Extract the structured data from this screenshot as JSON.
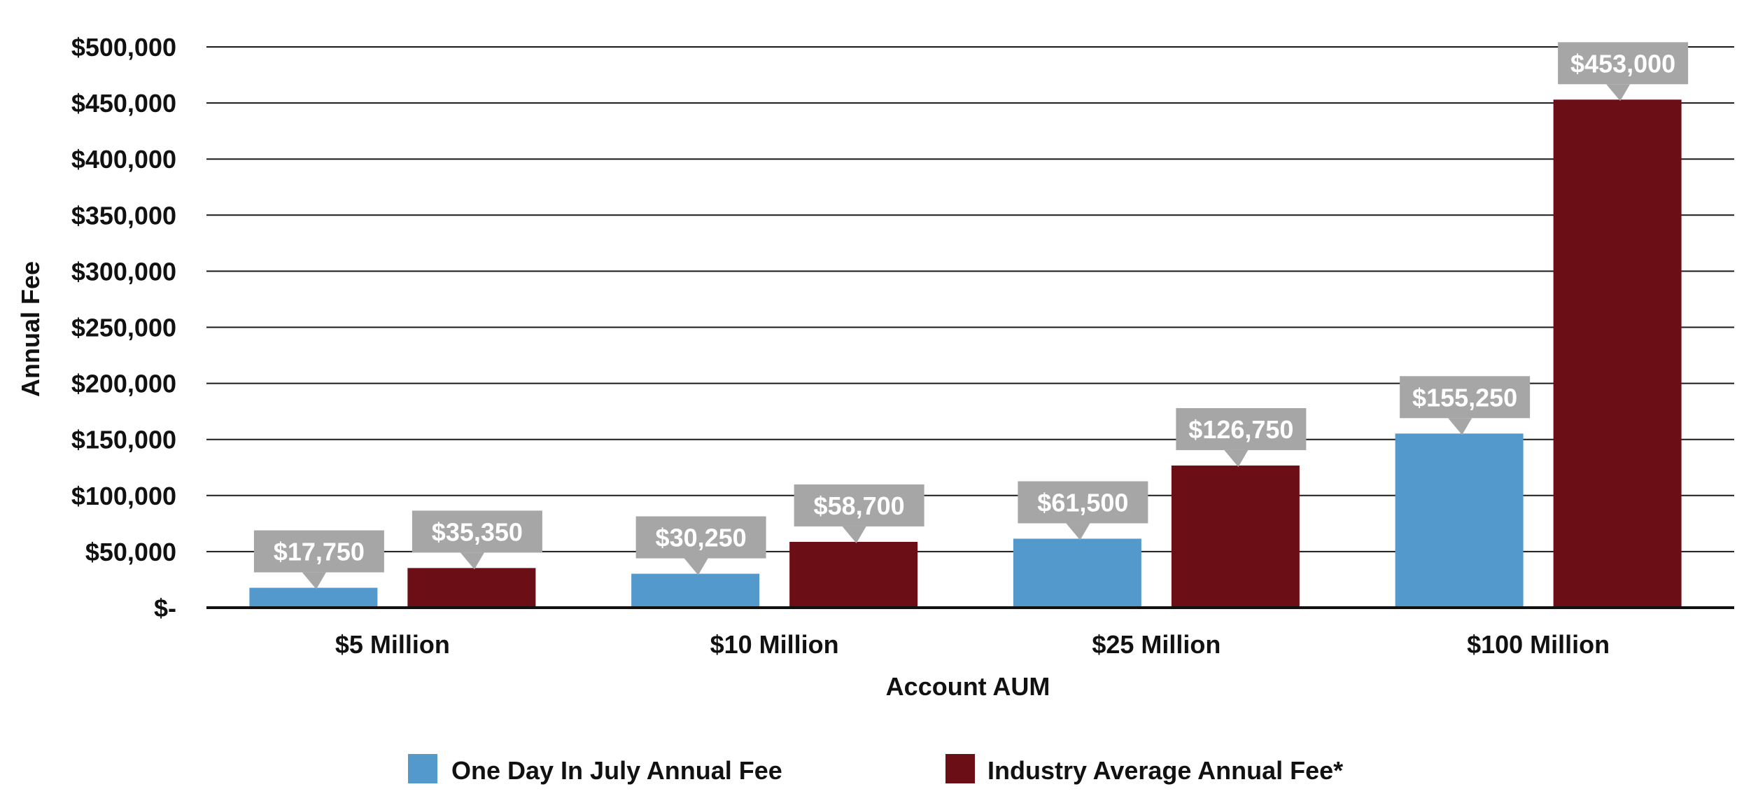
{
  "chart_data": {
    "type": "bar",
    "categories": [
      "$5 Million",
      "$10 Million",
      "$25 Million",
      "$100 Million"
    ],
    "series": [
      {
        "name": "One Day In July Annual Fee",
        "color": "#5499cc",
        "values": [
          17750,
          30250,
          61500,
          155250
        ],
        "labels": [
          "$17,750",
          "$30,250",
          "$61,500",
          "$155,250"
        ]
      },
      {
        "name": "Industry Average Annual Fee*",
        "color": "#6b0e16",
        "values": [
          35350,
          58700,
          126750,
          453000
        ],
        "labels": [
          "$35,350",
          "$58,700",
          "$126,750",
          "$453,000"
        ]
      }
    ],
    "xlabel": "Account AUM",
    "ylabel": "Annual Fee",
    "ylim": [
      0,
      500000
    ],
    "yticks": [
      0,
      50000,
      100000,
      150000,
      200000,
      250000,
      300000,
      350000,
      400000,
      450000,
      500000
    ],
    "ytick_labels": [
      "$-",
      "$50,000",
      "$100,000",
      "$150,000",
      "$200,000",
      "$250,000",
      "$300,000",
      "$350,000",
      "$400,000",
      "$450,000",
      "$500,000"
    ],
    "grid": true,
    "legend_position": "bottom",
    "data_label_color": "#a6a6a6"
  }
}
